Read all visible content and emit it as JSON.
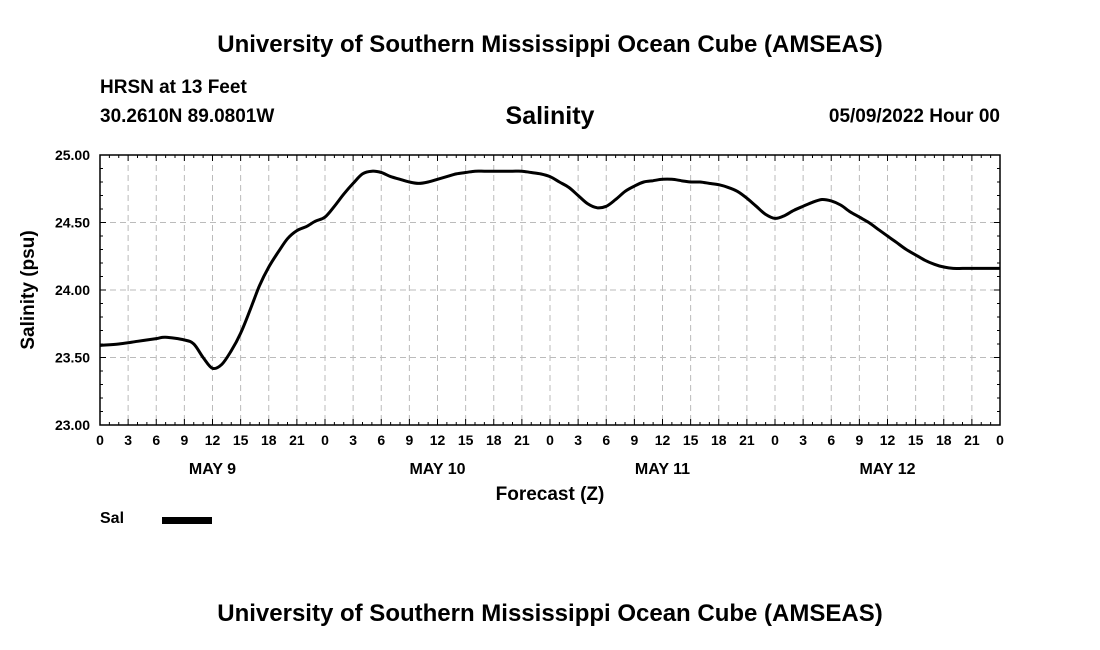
{
  "header": {
    "title": "University of Southern Mississippi Ocean Cube (AMSEAS)",
    "station": "HRSN at 13 Feet",
    "coords": "30.2610N  89.0801W",
    "subtitle": "Salinity",
    "datetime": "05/09/2022 Hour 00"
  },
  "footer": {
    "title": "University of Southern Mississippi Ocean Cube (AMSEAS)"
  },
  "legend": {
    "label": "Sal"
  },
  "colors": {
    "line": "#000000",
    "grid": "#bbbbbb"
  },
  "chart_data": {
    "type": "line",
    "title": "Salinity",
    "xlabel": "Forecast (Z)",
    "ylabel": "Salinity (psu)",
    "ylim": [
      23.0,
      25.0
    ],
    "xlim": [
      0,
      96
    ],
    "yticks": [
      23.0,
      23.5,
      24.0,
      24.5,
      25.0
    ],
    "ytick_labels": [
      "23.00",
      "23.50",
      "24.00",
      "24.50",
      "25.00"
    ],
    "xtick_hours": [
      0,
      3,
      6,
      9,
      12,
      15,
      18,
      21,
      24,
      27,
      30,
      33,
      36,
      39,
      42,
      45,
      48,
      51,
      54,
      57,
      60,
      63,
      66,
      69,
      72,
      75,
      78,
      81,
      84,
      87,
      90,
      93,
      96
    ],
    "xtick_labels": [
      "0",
      "3",
      "6",
      "9",
      "12",
      "15",
      "18",
      "21",
      "0",
      "3",
      "6",
      "9",
      "12",
      "15",
      "18",
      "21",
      "0",
      "3",
      "6",
      "9",
      "12",
      "15",
      "18",
      "21",
      "0",
      "3",
      "6",
      "9",
      "12",
      "15",
      "18",
      "21",
      "0"
    ],
    "day_labels": [
      {
        "hour": 12,
        "label": "MAY 9"
      },
      {
        "hour": 36,
        "label": "MAY 10"
      },
      {
        "hour": 60,
        "label": "MAY 11"
      },
      {
        "hour": 84,
        "label": "MAY 12"
      }
    ],
    "grid": true,
    "legend_position": "bottom-left",
    "series": [
      {
        "name": "Sal",
        "x": [
          0,
          2,
          4,
          6,
          7,
          9,
          10,
          11,
          12,
          13,
          14,
          15,
          16,
          17,
          18,
          19,
          20,
          21,
          22,
          23,
          24,
          25,
          26,
          27,
          28,
          29,
          30,
          31,
          32,
          33,
          34,
          35,
          36,
          37,
          38,
          39,
          40,
          41,
          42,
          43,
          44,
          45,
          46,
          47,
          48,
          49,
          50,
          51,
          52,
          53,
          54,
          55,
          56,
          57,
          58,
          59,
          60,
          61,
          62,
          63,
          64,
          65,
          66,
          67,
          68,
          69,
          70,
          71,
          72,
          73,
          74,
          75,
          76,
          77,
          78,
          79,
          80,
          81,
          82,
          83,
          84,
          85,
          86,
          87,
          88,
          89,
          90,
          91,
          92,
          93,
          94,
          95,
          96
        ],
        "values": [
          23.59,
          23.6,
          23.62,
          23.64,
          23.65,
          23.63,
          23.6,
          23.5,
          23.42,
          23.45,
          23.55,
          23.68,
          23.85,
          24.03,
          24.17,
          24.28,
          24.38,
          24.44,
          24.47,
          24.51,
          24.54,
          24.62,
          24.71,
          24.79,
          24.86,
          24.88,
          24.87,
          24.84,
          24.82,
          24.8,
          24.79,
          24.8,
          24.82,
          24.84,
          24.86,
          24.87,
          24.88,
          24.88,
          24.88,
          24.88,
          24.88,
          24.88,
          24.87,
          24.86,
          24.84,
          24.8,
          24.76,
          24.7,
          24.64,
          24.61,
          24.62,
          24.67,
          24.73,
          24.77,
          24.8,
          24.81,
          24.82,
          24.82,
          24.81,
          24.8,
          24.8,
          24.79,
          24.78,
          24.76,
          24.73,
          24.68,
          24.62,
          24.56,
          24.53,
          24.55,
          24.59,
          24.62,
          24.65,
          24.67,
          24.66,
          24.63,
          24.58,
          24.54,
          24.5,
          24.45,
          24.4,
          24.35,
          24.3,
          24.26,
          24.22,
          24.19,
          24.17,
          24.16,
          24.16,
          24.16,
          24.16,
          24.16,
          24.16
        ]
      }
    ]
  }
}
